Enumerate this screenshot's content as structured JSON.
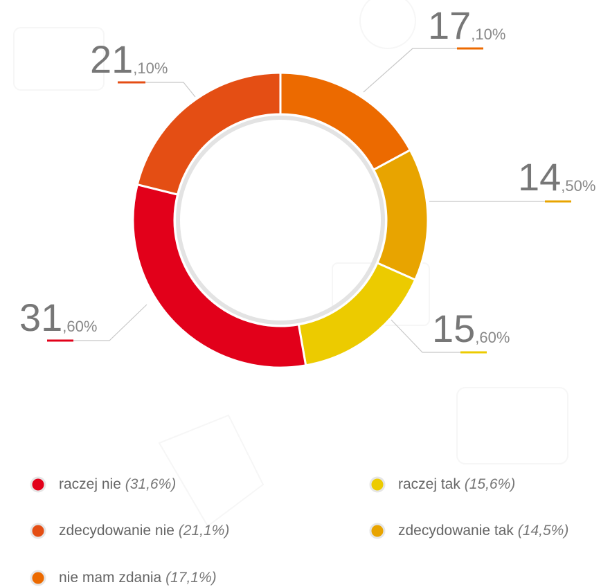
{
  "chart_data": {
    "type": "donut",
    "categories": [
      "raczej nie",
      "zdecydowanie nie",
      "nie mam zdania",
      "raczej tak",
      "zdecydowanie tak"
    ],
    "values": [
      31.6,
      21.1,
      17.1,
      15.6,
      14.5
    ],
    "colors": [
      "#e2001a",
      "#e44e14",
      "#ec6a00",
      "#eccb00",
      "#e8a400"
    ],
    "value_labels": [
      {
        "main": "31",
        "rest": ",60%"
      },
      {
        "main": "21",
        "rest": ",10%"
      },
      {
        "main": "17",
        "rest": ",10%"
      },
      {
        "main": "15",
        "rest": ",60%"
      },
      {
        "main": "14",
        "rest": ",50%"
      }
    ],
    "legend_value_labels": [
      "(31,6%)",
      "(21,1%)",
      "(17,1%)",
      "(15,6%)",
      "(14,5%)"
    ]
  }
}
